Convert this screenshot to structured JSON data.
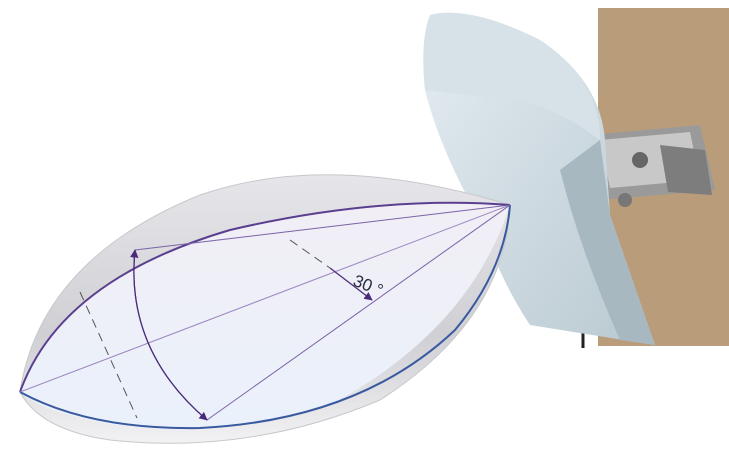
{
  "annotations": {
    "beam_angle": "30 °"
  }
}
